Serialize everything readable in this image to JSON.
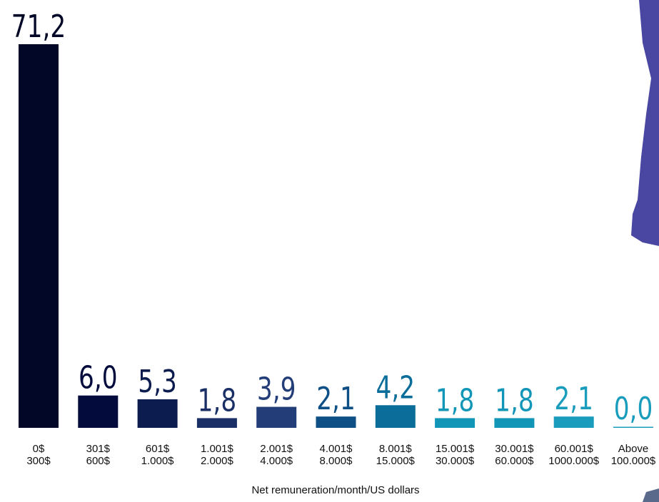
{
  "chart_data": {
    "type": "bar",
    "x_label": "Net remuneration/month/US dollars",
    "categories": [
      [
        "0$",
        "300$"
      ],
      [
        "301$",
        "600$"
      ],
      [
        "601$",
        "1.000$"
      ],
      [
        "1.001$",
        "2.000$"
      ],
      [
        "2.001$",
        "4.000$"
      ],
      [
        "4.001$",
        "8.000$"
      ],
      [
        "8.001$",
        "15.000$"
      ],
      [
        "15.001$",
        "30.000$"
      ],
      [
        "30.001$",
        "60.000$"
      ],
      [
        "60.001$",
        "1000.000$"
      ],
      [
        "Above",
        "100.000$"
      ]
    ],
    "values": [
      71.2,
      6.0,
      5.3,
      1.8,
      3.9,
      2.1,
      4.2,
      1.8,
      1.8,
      2.1,
      0.0
    ],
    "value_labels": [
      "71,2",
      "6,0",
      "5,3",
      "1,8",
      "3,9",
      "2,1",
      "4,2",
      "1,8",
      "1,8",
      "2,1",
      "0,0"
    ],
    "colors": [
      "#030727",
      "#020b3c",
      "#0c1c4f",
      "#1a2f66",
      "#223d77",
      "#0e4f86",
      "#0b6d9a",
      "#1296b8",
      "#1296b8",
      "#1a9cbd",
      "#1a9cbd"
    ]
  }
}
